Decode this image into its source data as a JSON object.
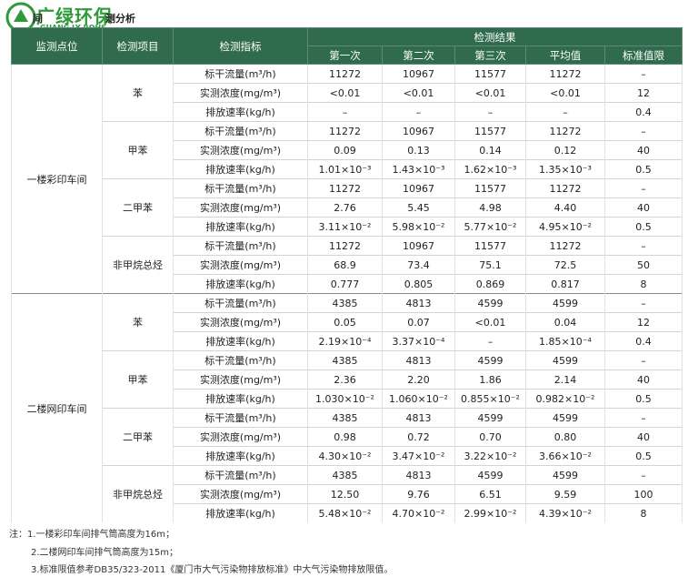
{
  "header": {
    "logo_cn": "广绿环保",
    "logo_en": "GUANG LY ROHS",
    "title_left": "间",
    "title_right": "测分析"
  },
  "table": {
    "columns": [
      "监测点位",
      "检测项目",
      "检测指标",
      "检测结果"
    ],
    "sub_columns": [
      "第一次",
      "第二次",
      "第三次",
      "平均值",
      "标准值限"
    ],
    "sites": [
      {
        "name": "一楼彩印车间",
        "items": [
          {
            "name": "苯",
            "rows": [
              {
                "metric": "标干流量(m³/h)",
                "values": [
                  "11272",
                  "10967",
                  "11577",
                  "11272",
                  "–"
                ]
              },
              {
                "metric": "实测浓度(mg/m³)",
                "values": [
                  "<0.01",
                  "<0.01",
                  "<0.01",
                  "<0.01",
                  "12"
                ]
              },
              {
                "metric": "排放速率(kg/h)",
                "values": [
                  "–",
                  "–",
                  "–",
                  "–",
                  "0.4"
                ]
              }
            ]
          },
          {
            "name": "甲苯",
            "rows": [
              {
                "metric": "标干流量(m³/h)",
                "values": [
                  "11272",
                  "10967",
                  "11577",
                  "11272",
                  "–"
                ]
              },
              {
                "metric": "实测浓度(mg/m³)",
                "values": [
                  "0.09",
                  "0.13",
                  "0.14",
                  "0.12",
                  "40"
                ]
              },
              {
                "metric": "排放速率(kg/h)",
                "values": [
                  "1.01×10⁻³",
                  "1.43×10⁻³",
                  "1.62×10⁻³",
                  "1.35×10⁻³",
                  "0.5"
                ]
              }
            ]
          },
          {
            "name": "二甲苯",
            "rows": [
              {
                "metric": "标干流量(m³/h)",
                "values": [
                  "11272",
                  "10967",
                  "11577",
                  "11272",
                  "–"
                ]
              },
              {
                "metric": "实测浓度(mg/m³)",
                "values": [
                  "2.76",
                  "5.45",
                  "4.98",
                  "4.40",
                  "40"
                ]
              },
              {
                "metric": "排放速率(kg/h)",
                "values": [
                  "3.11×10⁻²",
                  "5.98×10⁻²",
                  "5.77×10⁻²",
                  "4.95×10⁻²",
                  "0.5"
                ]
              }
            ]
          },
          {
            "name": "非甲烷总烃",
            "rows": [
              {
                "metric": "标干流量(m³/h)",
                "values": [
                  "11272",
                  "10967",
                  "11577",
                  "11272",
                  "–"
                ]
              },
              {
                "metric": "实测浓度(mg/m³)",
                "values": [
                  "68.9",
                  "73.4",
                  "75.1",
                  "72.5",
                  "50"
                ]
              },
              {
                "metric": "排放速率(kg/h)",
                "values": [
                  "0.777",
                  "0.805",
                  "0.869",
                  "0.817",
                  "8"
                ]
              }
            ]
          }
        ]
      },
      {
        "name": "二楼网印车间",
        "items": [
          {
            "name": "苯",
            "rows": [
              {
                "metric": "标干流量(m³/h)",
                "values": [
                  "4385",
                  "4813",
                  "4599",
                  "4599",
                  "–"
                ]
              },
              {
                "metric": "实测浓度(mg/m³)",
                "values": [
                  "0.05",
                  "0.07",
                  "<0.01",
                  "0.04",
                  "12"
                ]
              },
              {
                "metric": "排放速率(kg/h)",
                "values": [
                  "2.19×10⁻⁴",
                  "3.37×10⁻⁴",
                  "–",
                  "1.85×10⁻⁴",
                  "0.4"
                ]
              }
            ]
          },
          {
            "name": "甲苯",
            "rows": [
              {
                "metric": "标干流量(m³/h)",
                "values": [
                  "4385",
                  "4813",
                  "4599",
                  "4599",
                  "–"
                ]
              },
              {
                "metric": "实测浓度(mg/m³)",
                "values": [
                  "2.36",
                  "2.20",
                  "1.86",
                  "2.14",
                  "40"
                ]
              },
              {
                "metric": "排放速率(kg/h)",
                "values": [
                  "1.030×10⁻²",
                  "1.060×10⁻²",
                  "0.855×10⁻²",
                  "0.982×10⁻²",
                  "0.5"
                ]
              }
            ]
          },
          {
            "name": "二甲苯",
            "rows": [
              {
                "metric": "标干流量(m³/h)",
                "values": [
                  "4385",
                  "4813",
                  "4599",
                  "4599",
                  "–"
                ]
              },
              {
                "metric": "实测浓度(mg/m³)",
                "values": [
                  "0.98",
                  "0.72",
                  "0.70",
                  "0.80",
                  "40"
                ]
              },
              {
                "metric": "排放速率(kg/h)",
                "values": [
                  "4.30×10⁻²",
                  "3.47×10⁻²",
                  "3.22×10⁻²",
                  "3.66×10⁻²",
                  "0.5"
                ]
              }
            ]
          },
          {
            "name": "非甲烷总烃",
            "rows": [
              {
                "metric": "标干流量(m³/h)",
                "values": [
                  "4385",
                  "4813",
                  "4599",
                  "4599",
                  "–"
                ]
              },
              {
                "metric": "实测浓度(mg/m³)",
                "values": [
                  "12.50",
                  "9.76",
                  "6.51",
                  "9.59",
                  "100"
                ]
              },
              {
                "metric": "排放速率(kg/h)",
                "values": [
                  "5.48×10⁻²",
                  "4.70×10⁻²",
                  "2.99×10⁻²",
                  "4.39×10⁻²",
                  "8"
                ]
              }
            ]
          }
        ]
      }
    ]
  },
  "notes": [
    "注：1.一楼彩印车间排气筒高度为16m；",
    "2.二楼网印车间排气筒高度为15m；",
    "3.标准限值参考DB35/323-2011《厦门市大气污染物排放标准》中大气污染物排放限值。"
  ]
}
